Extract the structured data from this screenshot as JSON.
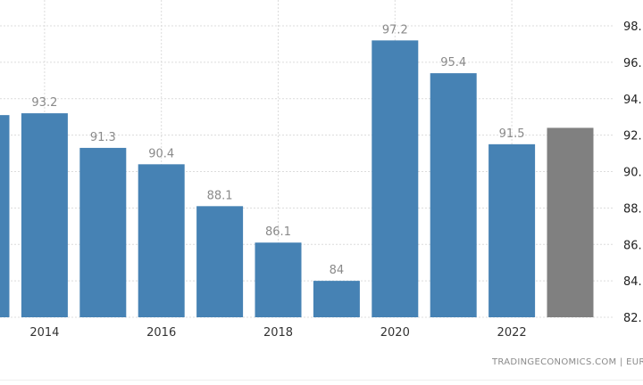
{
  "chart_data": {
    "type": "bar",
    "title": "",
    "xlabel": "",
    "ylabel": "",
    "categories": [
      "2013",
      "2014",
      "2015",
      "2016",
      "2017",
      "2018",
      "2019",
      "2020",
      "2021",
      "2022",
      "2023"
    ],
    "values": [
      93.1,
      93.2,
      91.3,
      90.4,
      88.1,
      86.1,
      84,
      97.2,
      95.4,
      91.5,
      92.4
    ],
    "data_labels": [
      "",
      "93.2",
      "91.3",
      "90.4",
      "88.1",
      "86.1",
      "84",
      "97.2",
      "95.4",
      "91.5",
      ""
    ],
    "forecast": [
      false,
      false,
      false,
      false,
      false,
      false,
      false,
      false,
      false,
      false,
      true
    ],
    "x_tick_labels": [
      "2014",
      "2016",
      "2018",
      "2020",
      "2022"
    ],
    "y_tick_labels": [
      "82.",
      "84.",
      "86.",
      "88.",
      "90.",
      "92.",
      "94.",
      "96.",
      "98."
    ],
    "y_ticks": [
      82,
      84,
      86,
      88,
      90,
      92,
      94,
      96,
      98
    ],
    "ylim": [
      82,
      98
    ],
    "y_axis_side": "right",
    "grid": true,
    "colors": {
      "bar": "#4682b4",
      "forecast": "#808080",
      "grid": "#dcdcdc"
    }
  },
  "footer": {
    "source": "TRADINGECONOMICS.COM  |  EURO"
  }
}
